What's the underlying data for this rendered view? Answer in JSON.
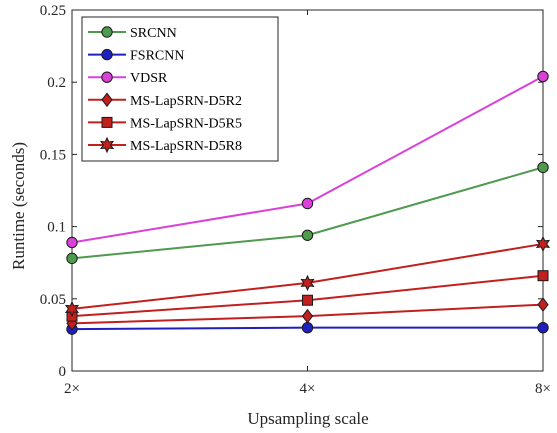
{
  "chart_data": {
    "type": "line",
    "xlabel": "Upsampling scale",
    "ylabel": "Runtime (seconds)",
    "x": [
      "2×",
      "4×",
      "8×"
    ],
    "ylim": [
      0,
      0.25
    ],
    "yticks": [
      "0",
      "0.05",
      "0.1",
      "0.15",
      "0.2",
      "0.25"
    ],
    "grid": false,
    "legend_position": "top-left",
    "series": [
      {
        "name": "SRCNN",
        "values": [
          0.078,
          0.094,
          0.141
        ],
        "color": "#4f9a4f",
        "marker": "circle",
        "marker_fill": "#4f9a4f"
      },
      {
        "name": "FSRCNN",
        "values": [
          0.029,
          0.03,
          0.03
        ],
        "color": "#1f1fbf",
        "marker": "circle",
        "marker_fill": "#1f1fbf"
      },
      {
        "name": "VDSR",
        "values": [
          0.089,
          0.116,
          0.204
        ],
        "color": "#d941d9",
        "marker": "circle",
        "marker_fill": "#d941d9"
      },
      {
        "name": "MS-LapSRN-D5R2",
        "values": [
          0.033,
          0.038,
          0.046
        ],
        "color": "#c21f1f",
        "marker": "diamond",
        "marker_fill": "#c21f1f"
      },
      {
        "name": "MS-LapSRN-D5R5",
        "values": [
          0.038,
          0.049,
          0.066
        ],
        "color": "#c21f1f",
        "marker": "square",
        "marker_fill": "#c21f1f"
      },
      {
        "name": "MS-LapSRN-D5R8",
        "values": [
          0.043,
          0.061,
          0.088
        ],
        "color": "#c21f1f",
        "marker": "hexagram",
        "marker_fill": "#c21f1f"
      }
    ]
  }
}
